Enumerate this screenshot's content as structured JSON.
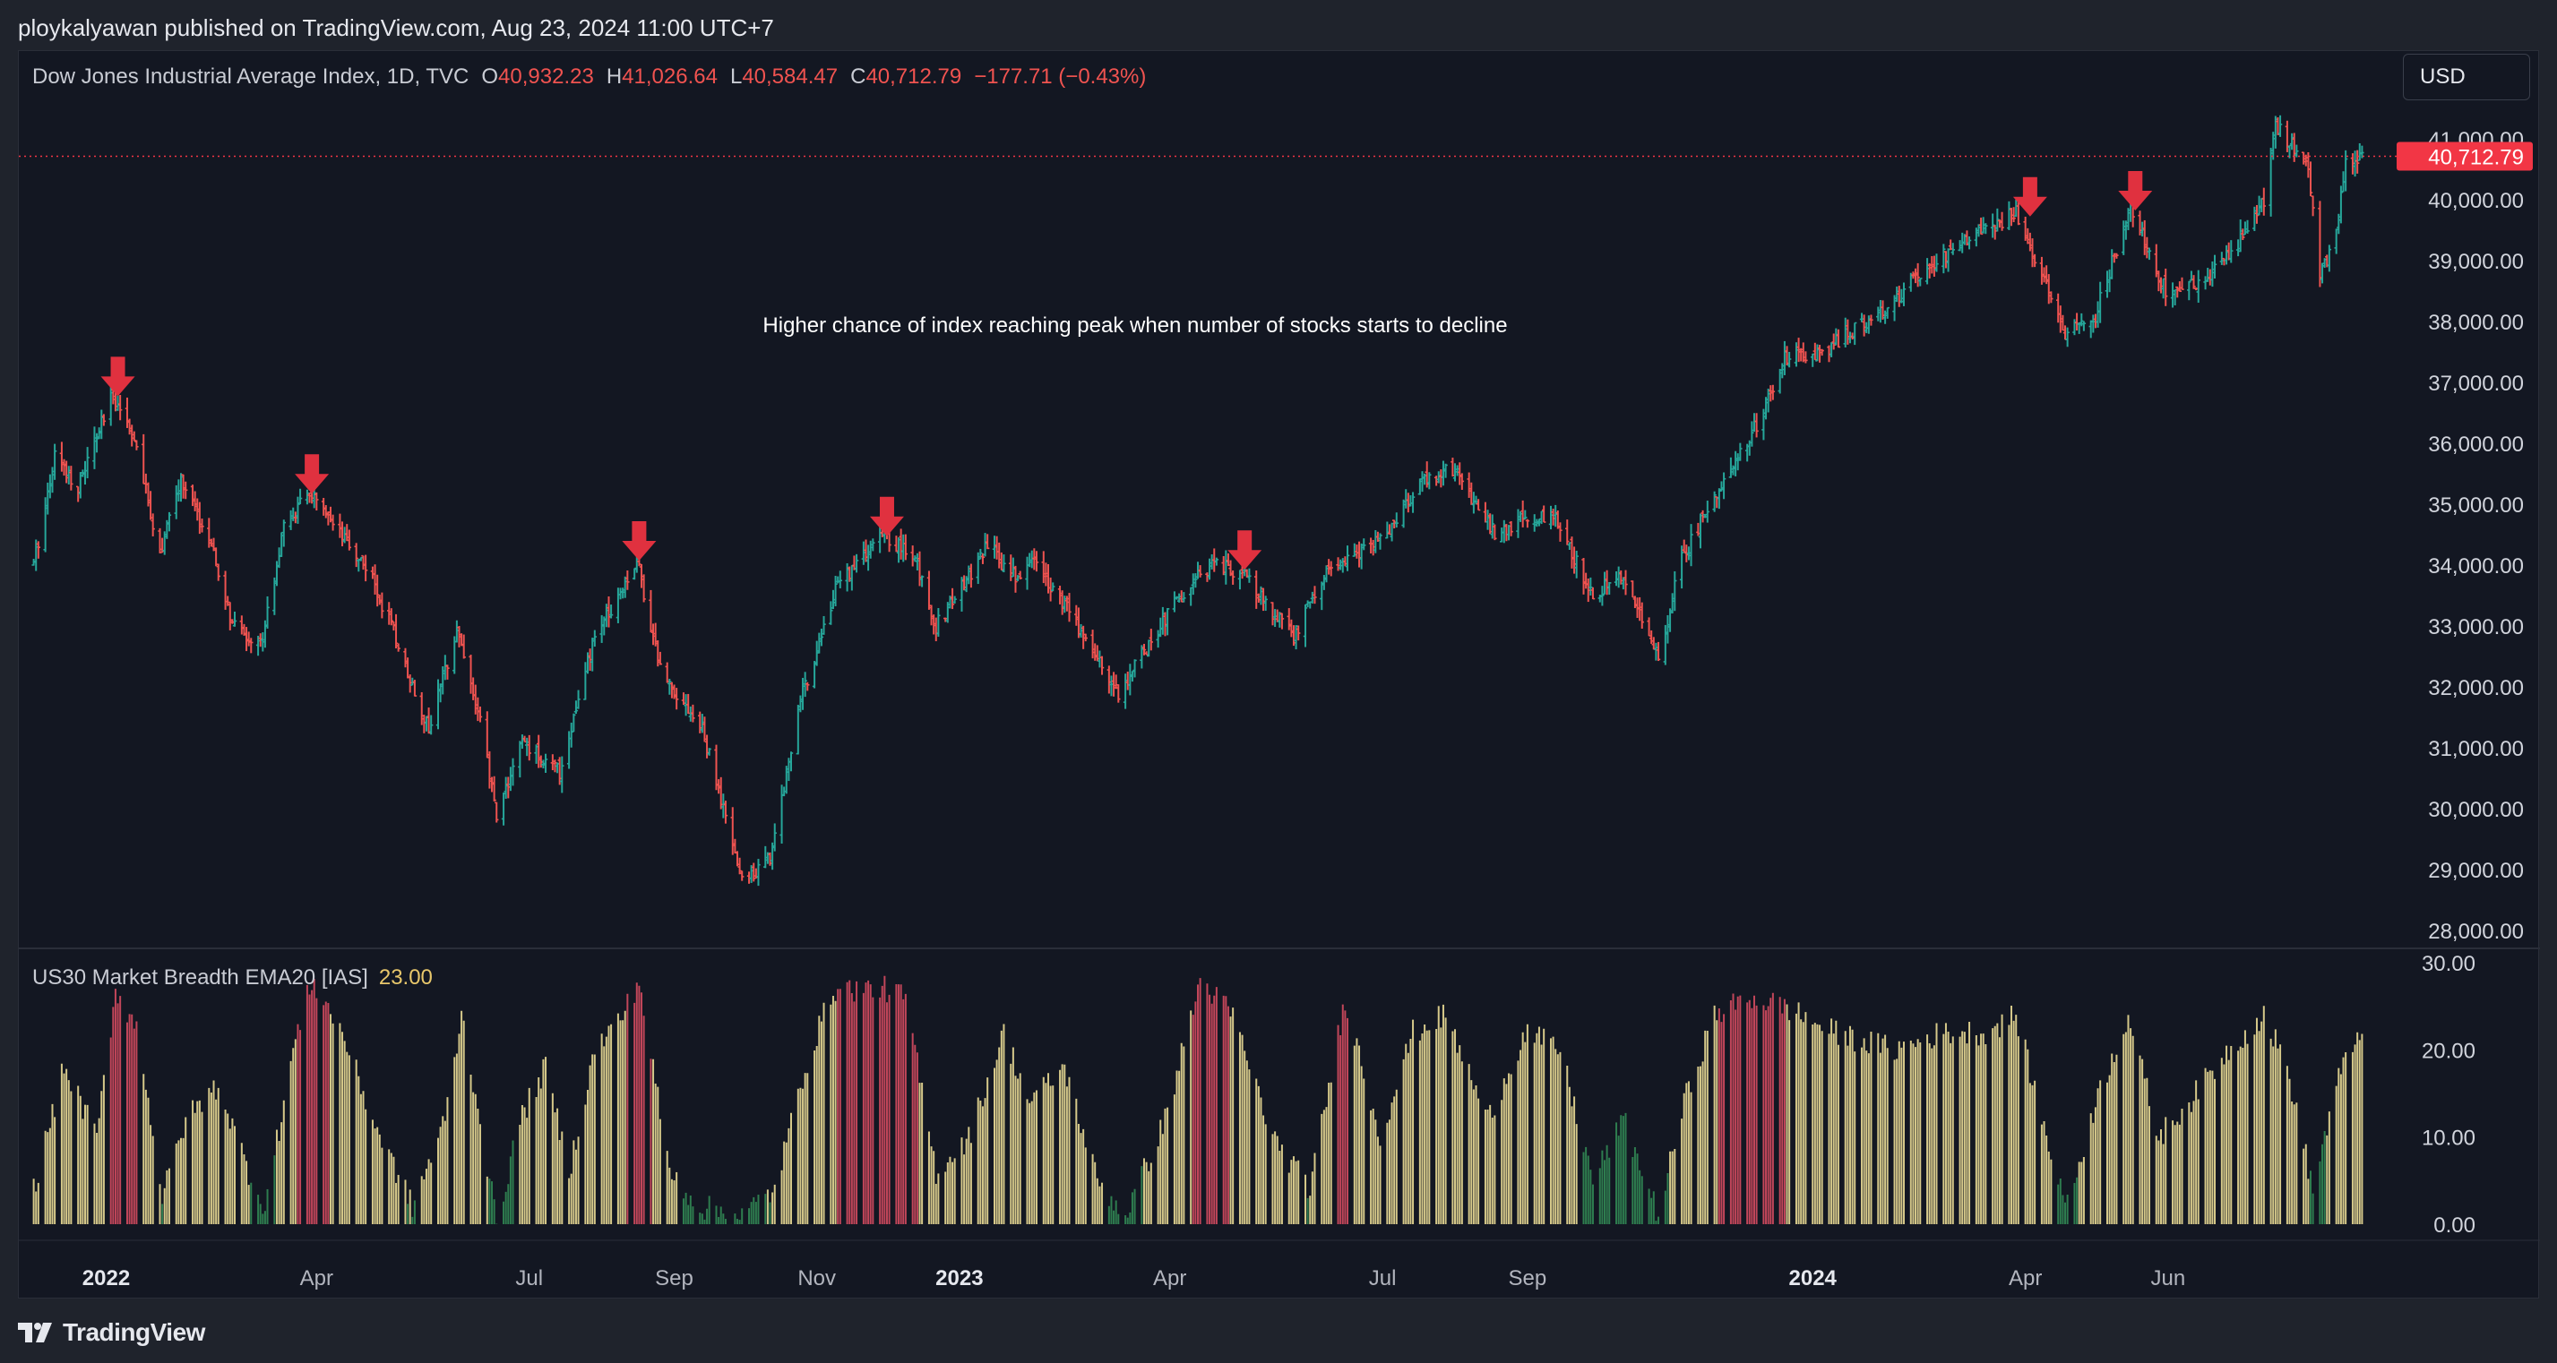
{
  "header": {
    "published_line": "ploykalyawan published on TradingView.com, Aug 23, 2024 11:00 UTC+7"
  },
  "legend": {
    "symbol": "Dow Jones Industrial Average Index, 1D, TVC",
    "open_label": "O",
    "open_value": "40,932.23",
    "high_label": "H",
    "high_value": "41,026.64",
    "low_label": "L",
    "low_value": "40,584.47",
    "close_label": "C",
    "close_value": "40,712.79",
    "change": "−177.71 (−0.43%)"
  },
  "currency_button": {
    "label": "USD"
  },
  "indicator": {
    "name": "US30 Market Breadth EMA20 [IAS]",
    "value": "23.00"
  },
  "footer": {
    "brand": "TradingView"
  },
  "colors": {
    "up": "#26a69a",
    "down": "#ef5350",
    "arrow": "#e0313f",
    "breadth_yellow": "#d6c98a",
    "breadth_red": "#c2465a",
    "breadth_green": "#2e7d4f",
    "price_tag": "#f23645",
    "background": "#131722"
  },
  "chart_data": [
    {
      "type": "ohlc",
      "title": "",
      "annotation": "Higher chance of index reaching peak when number of stocks starts to decline",
      "last_price_label": "40,712.79",
      "last_price": 40712.79,
      "ylim": [
        27500,
        41500
      ],
      "y_ticks": [
        28000,
        29000,
        30000,
        31000,
        32000,
        33000,
        34000,
        35000,
        36000,
        37000,
        38000,
        39000,
        40000,
        41000
      ],
      "y_tick_labels": [
        "28,000.00",
        "29,000.00",
        "30,000.00",
        "31,000.00",
        "32,000.00",
        "33,000.00",
        "34,000.00",
        "35,000.00",
        "36,000.00",
        "37,000.00",
        "38,000.00",
        "39,000.00",
        "40,000.00",
        "41,000.00"
      ],
      "x_range": [
        "2021-12-01",
        "2024-08-23"
      ],
      "x_ticks": [
        {
          "date": "2022-01-01",
          "label": "2022",
          "bold": true
        },
        {
          "date": "2022-04-01",
          "label": "Apr",
          "bold": false
        },
        {
          "date": "2022-07-01",
          "label": "Jul",
          "bold": false
        },
        {
          "date": "2022-09-01",
          "label": "Sep",
          "bold": false
        },
        {
          "date": "2022-11-01",
          "label": "Nov",
          "bold": false
        },
        {
          "date": "2023-01-01",
          "label": "2023",
          "bold": true
        },
        {
          "date": "2023-04-01",
          "label": "Apr",
          "bold": false
        },
        {
          "date": "2023-07-01",
          "label": "Jul",
          "bold": false
        },
        {
          "date": "2023-09-01",
          "label": "Sep",
          "bold": false
        },
        {
          "date": "2024-01-01",
          "label": "2024",
          "bold": true
        },
        {
          "date": "2024-04-01",
          "label": "Apr",
          "bold": false
        },
        {
          "date": "2024-06-01",
          "label": "Jun",
          "bold": false
        }
      ],
      "price_path": [
        [
          "2021-12-01",
          34000
        ],
        [
          "2021-12-10",
          35800
        ],
        [
          "2021-12-20",
          35300
        ],
        [
          "2022-01-04",
          36800
        ],
        [
          "2022-01-12",
          36200
        ],
        [
          "2022-01-24",
          34200
        ],
        [
          "2022-02-02",
          35400
        ],
        [
          "2022-02-14",
          34400
        ],
        [
          "2022-02-24",
          33000
        ],
        [
          "2022-03-08",
          32700
        ],
        [
          "2022-03-18",
          34600
        ],
        [
          "2022-03-29",
          35200
        ],
        [
          "2022-04-08",
          34600
        ],
        [
          "2022-04-22",
          34000
        ],
        [
          "2022-05-03",
          33000
        ],
        [
          "2022-05-19",
          31300
        ],
        [
          "2022-05-31",
          33000
        ],
        [
          "2022-06-10",
          31400
        ],
        [
          "2022-06-17",
          29900
        ],
        [
          "2022-06-28",
          31100
        ],
        [
          "2022-07-14",
          30600
        ],
        [
          "2022-07-29",
          32800
        ],
        [
          "2022-08-16",
          34100
        ],
        [
          "2022-08-26",
          32300
        ],
        [
          "2022-09-13",
          31300
        ],
        [
          "2022-09-30",
          28800
        ],
        [
          "2022-10-12",
          29200
        ],
        [
          "2022-10-25",
          31800
        ],
        [
          "2022-11-10",
          33700
        ],
        [
          "2022-11-30",
          34500
        ],
        [
          "2022-12-13",
          34100
        ],
        [
          "2022-12-22",
          33000
        ],
        [
          "2023-01-13",
          34300
        ],
        [
          "2023-01-25",
          33800
        ],
        [
          "2023-02-02",
          34100
        ],
        [
          "2023-02-24",
          32800
        ],
        [
          "2023-03-10",
          31900
        ],
        [
          "2023-03-31",
          33200
        ],
        [
          "2023-04-18",
          34000
        ],
        [
          "2023-05-01",
          33900
        ],
        [
          "2023-05-24",
          32800
        ],
        [
          "2023-06-05",
          33800
        ],
        [
          "2023-06-30",
          34400
        ],
        [
          "2023-07-19",
          35400
        ],
        [
          "2023-07-31",
          35600
        ],
        [
          "2023-08-18",
          34500
        ],
        [
          "2023-09-01",
          34800
        ],
        [
          "2023-09-14",
          34700
        ],
        [
          "2023-09-29",
          33500
        ],
        [
          "2023-10-11",
          33800
        ],
        [
          "2023-10-27",
          32500
        ],
        [
          "2023-11-06",
          34100
        ],
        [
          "2023-11-22",
          35300
        ],
        [
          "2023-12-08",
          36300
        ],
        [
          "2023-12-20",
          37400
        ],
        [
          "2024-01-05",
          37500
        ],
        [
          "2024-01-31",
          38200
        ],
        [
          "2024-02-22",
          39000
        ],
        [
          "2024-03-28",
          39800
        ],
        [
          "2024-04-08",
          38800
        ],
        [
          "2024-04-17",
          37800
        ],
        [
          "2024-04-30",
          38000
        ],
        [
          "2024-05-16",
          39900
        ],
        [
          "2024-05-31",
          38500
        ],
        [
          "2024-06-14",
          38600
        ],
        [
          "2024-06-28",
          39100
        ],
        [
          "2024-07-12",
          40000
        ],
        [
          "2024-07-17",
          41200
        ],
        [
          "2024-07-31",
          40600
        ],
        [
          "2024-08-05",
          38700
        ],
        [
          "2024-08-12",
          39400
        ],
        [
          "2024-08-16",
          40600
        ],
        [
          "2024-08-23",
          40712
        ]
      ],
      "peak_arrows": [
        {
          "date": "2022-01-06",
          "price": 36950
        },
        {
          "date": "2022-03-30",
          "price": 35350
        },
        {
          "date": "2022-08-17",
          "price": 34250
        },
        {
          "date": "2022-12-01",
          "price": 34650
        },
        {
          "date": "2023-05-03",
          "price": 34100
        },
        {
          "date": "2024-04-03",
          "price": 39900
        },
        {
          "date": "2024-05-18",
          "price": 40000
        }
      ]
    },
    {
      "type": "bar",
      "title": "",
      "ylim": [
        0,
        30
      ],
      "y_ticks": [
        0,
        10,
        20,
        30
      ],
      "y_tick_labels": [
        "0.00",
        "10.00",
        "20.00",
        "30.00"
      ],
      "last_value": 23.0,
      "breadth_path": [
        [
          "2021-12-01",
          4
        ],
        [
          "2021-12-14",
          18
        ],
        [
          "2021-12-28",
          10
        ],
        [
          "2022-01-05",
          27
        ],
        [
          "2022-01-15",
          22
        ],
        [
          "2022-01-25",
          3
        ],
        [
          "2022-02-04",
          12
        ],
        [
          "2022-02-18",
          16
        ],
        [
          "2022-03-03",
          6
        ],
        [
          "2022-03-10",
          2
        ],
        [
          "2022-03-22",
          20
        ],
        [
          "2022-03-30",
          28
        ],
        [
          "2022-04-12",
          22
        ],
        [
          "2022-04-25",
          12
        ],
        [
          "2022-05-12",
          2
        ],
        [
          "2022-05-26",
          12
        ],
        [
          "2022-06-02",
          24
        ],
        [
          "2022-06-10",
          12
        ],
        [
          "2022-06-17",
          0
        ],
        [
          "2022-06-27",
          12
        ],
        [
          "2022-07-08",
          18
        ],
        [
          "2022-07-18",
          6
        ],
        [
          "2022-07-29",
          20
        ],
        [
          "2022-08-10",
          24
        ],
        [
          "2022-08-17",
          28
        ],
        [
          "2022-08-30",
          6
        ],
        [
          "2022-09-12",
          2
        ],
        [
          "2022-09-30",
          1
        ],
        [
          "2022-10-14",
          4
        ],
        [
          "2022-10-27",
          18
        ],
        [
          "2022-11-08",
          27
        ],
        [
          "2022-11-30",
          27
        ],
        [
          "2022-12-09",
          26
        ],
        [
          "2022-12-22",
          6
        ],
        [
          "2023-01-05",
          10
        ],
        [
          "2023-01-20",
          22
        ],
        [
          "2023-01-31",
          14
        ],
        [
          "2023-02-15",
          18
        ],
        [
          "2023-03-01",
          5
        ],
        [
          "2023-03-13",
          1
        ],
        [
          "2023-03-30",
          12
        ],
        [
          "2023-04-14",
          28
        ],
        [
          "2023-04-28",
          24
        ],
        [
          "2023-05-15",
          10
        ],
        [
          "2023-05-31",
          4
        ],
        [
          "2023-06-15",
          26
        ],
        [
          "2023-06-30",
          10
        ],
        [
          "2023-07-14",
          22
        ],
        [
          "2023-07-28",
          24
        ],
        [
          "2023-08-15",
          12
        ],
        [
          "2023-08-31",
          22
        ],
        [
          "2023-09-15",
          20
        ],
        [
          "2023-09-29",
          5
        ],
        [
          "2023-10-12",
          12
        ],
        [
          "2023-10-27",
          1
        ],
        [
          "2023-11-07",
          14
        ],
        [
          "2023-11-20",
          24
        ],
        [
          "2023-12-05",
          26
        ],
        [
          "2023-12-20",
          25
        ],
        [
          "2024-01-10",
          22
        ],
        [
          "2024-02-05",
          20
        ],
        [
          "2024-02-26",
          22
        ],
        [
          "2024-03-15",
          22
        ],
        [
          "2024-03-28",
          24
        ],
        [
          "2024-04-10",
          10
        ],
        [
          "2024-04-19",
          2
        ],
        [
          "2024-05-01",
          14
        ],
        [
          "2024-05-15",
          24
        ],
        [
          "2024-05-28",
          10
        ],
        [
          "2024-06-10",
          14
        ],
        [
          "2024-06-27",
          20
        ],
        [
          "2024-07-12",
          24
        ],
        [
          "2024-07-22",
          18
        ],
        [
          "2024-08-02",
          4
        ],
        [
          "2024-08-12",
          16
        ],
        [
          "2024-08-23",
          23
        ]
      ],
      "red_periods": [
        [
          "2022-01-03",
          "2022-01-14"
        ],
        [
          "2022-03-24",
          "2022-04-06"
        ],
        [
          "2022-08-12",
          "2022-08-22"
        ],
        [
          "2022-11-10",
          "2022-12-14"
        ],
        [
          "2023-04-11",
          "2023-04-26"
        ],
        [
          "2023-06-12",
          "2023-06-16"
        ],
        [
          "2023-11-22",
          "2023-12-20"
        ]
      ],
      "green_periods": [
        [
          "2022-03-04",
          "2022-03-14"
        ],
        [
          "2022-06-14",
          "2022-06-24"
        ],
        [
          "2022-09-06",
          "2022-10-10"
        ],
        [
          "2023-03-06",
          "2023-03-20"
        ],
        [
          "2023-09-25",
          "2023-10-31"
        ],
        [
          "2024-04-15",
          "2024-04-23"
        ],
        [
          "2024-08-01",
          "2024-08-07"
        ]
      ]
    }
  ]
}
